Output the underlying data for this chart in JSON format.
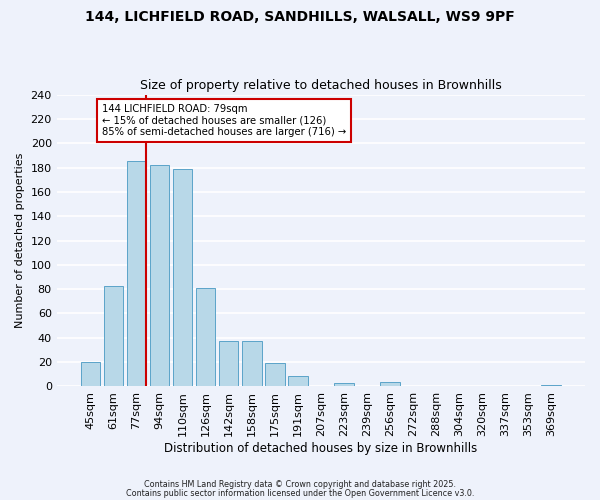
{
  "title1": "144, LICHFIELD ROAD, SANDHILLS, WALSALL, WS9 9PF",
  "title2": "Size of property relative to detached houses in Brownhills",
  "xlabel": "Distribution of detached houses by size in Brownhills",
  "ylabel": "Number of detached properties",
  "bar_labels": [
    "45sqm",
    "61sqm",
    "77sqm",
    "94sqm",
    "110sqm",
    "126sqm",
    "142sqm",
    "158sqm",
    "175sqm",
    "191sqm",
    "207sqm",
    "223sqm",
    "239sqm",
    "256sqm",
    "272sqm",
    "288sqm",
    "304sqm",
    "320sqm",
    "337sqm",
    "353sqm",
    "369sqm"
  ],
  "bar_values": [
    20,
    83,
    185,
    182,
    179,
    81,
    37,
    37,
    19,
    9,
    0,
    3,
    0,
    4,
    0,
    0,
    0,
    0,
    0,
    0,
    1
  ],
  "bar_color": "#b8d8e8",
  "bar_edge_color": "#5ba3c9",
  "vline_color": "#cc0000",
  "annotation_text": "144 LICHFIELD ROAD: 79sqm\n← 15% of detached houses are smaller (126)\n85% of semi-detached houses are larger (716) →",
  "annotation_box_color": "#ffffff",
  "annotation_box_edge": "#cc0000",
  "footer1": "Contains HM Land Registry data © Crown copyright and database right 2025.",
  "footer2": "Contains public sector information licensed under the Open Government Licence v3.0.",
  "ylim": [
    0,
    240
  ],
  "yticks": [
    0,
    20,
    40,
    60,
    80,
    100,
    120,
    140,
    160,
    180,
    200,
    220,
    240
  ],
  "background_color": "#eef2fb"
}
